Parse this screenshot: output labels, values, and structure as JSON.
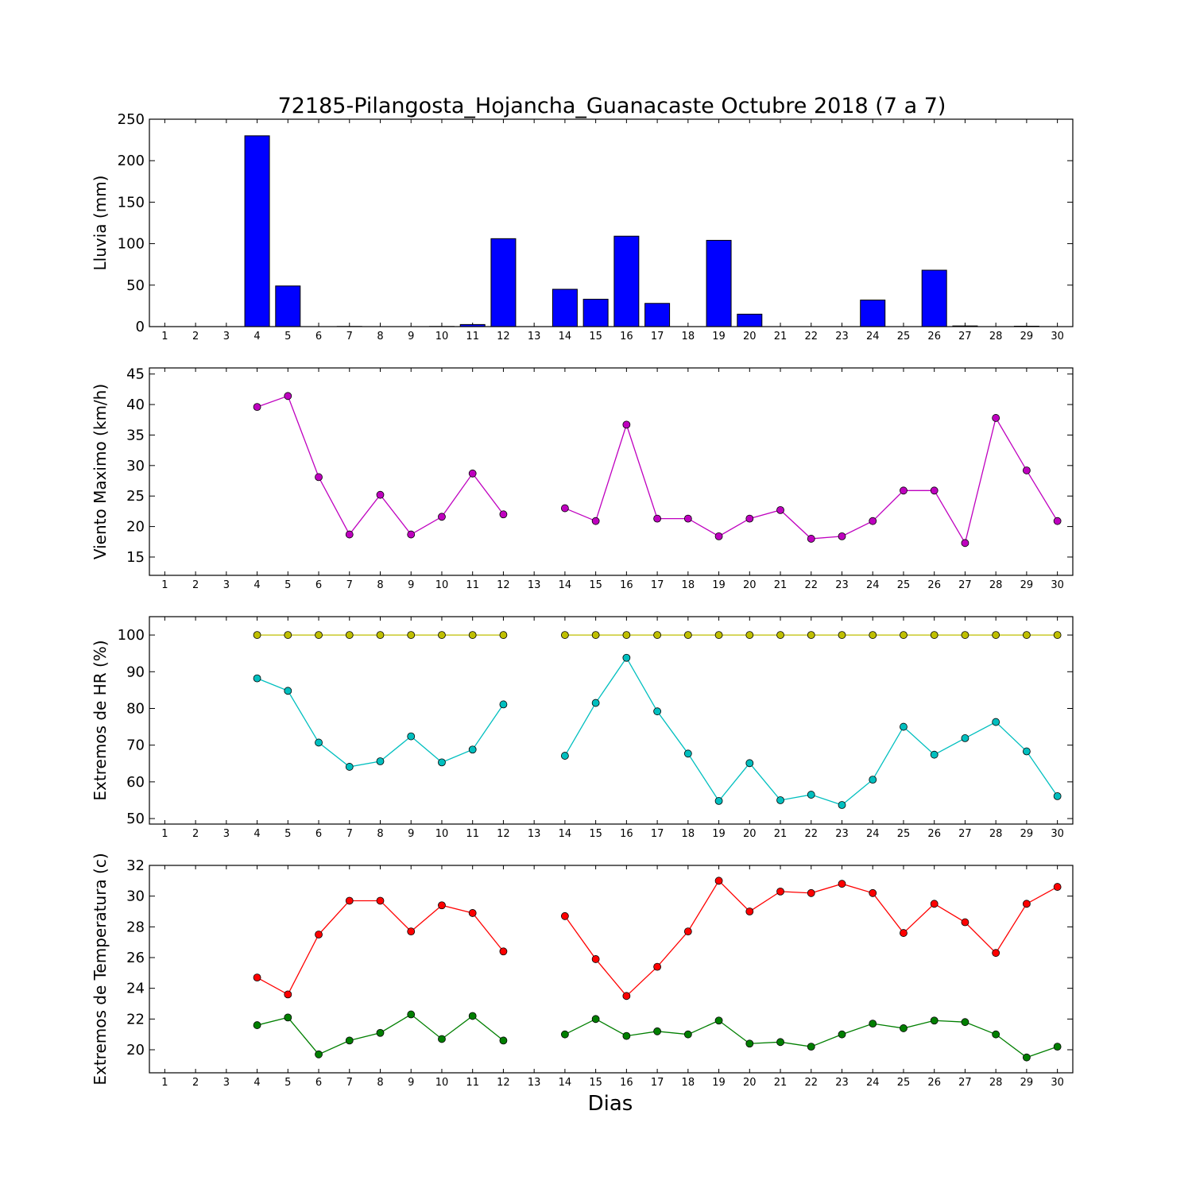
{
  "figure": {
    "title": "72185-Pilangosta_Hojancha_Guanacaste Octubre 2018  (7 a 7)",
    "xlabel": "Dias"
  },
  "chart_data": [
    {
      "type": "bar",
      "ylabel": "Lluvia (mm)",
      "ylim": [
        0,
        250
      ],
      "yticks": [
        0,
        50,
        100,
        150,
        200,
        250
      ],
      "categories": [
        "1",
        "2",
        "3",
        "4",
        "5",
        "6",
        "7",
        "8",
        "9",
        "10",
        "11",
        "12",
        "13",
        "14",
        "15",
        "16",
        "17",
        "18",
        "19",
        "20",
        "21",
        "22",
        "23",
        "24",
        "25",
        "26",
        "27",
        "28",
        "29",
        "30"
      ],
      "series": [
        {
          "color": "#0000ff",
          "values": [
            0,
            0,
            0,
            230,
            49,
            0,
            0.2,
            0,
            0,
            0.2,
            2.5,
            106,
            0,
            45,
            33,
            109,
            28,
            0,
            104,
            15,
            0,
            0,
            0,
            32,
            0,
            68,
            0.8,
            0,
            0.5,
            0
          ]
        }
      ]
    },
    {
      "type": "line",
      "ylabel": "Viento Maximo (km/h)",
      "ylim": [
        12,
        46
      ],
      "yticks": [
        15,
        20,
        25,
        30,
        35,
        40,
        45
      ],
      "categories": [
        "1",
        "2",
        "3",
        "4",
        "5",
        "6",
        "7",
        "8",
        "9",
        "10",
        "11",
        "12",
        "13",
        "14",
        "15",
        "16",
        "17",
        "18",
        "19",
        "20",
        "21",
        "22",
        "23",
        "24",
        "25",
        "26",
        "27",
        "28",
        "29",
        "30"
      ],
      "series": [
        {
          "color": "#bf00bf",
          "values": [
            null,
            null,
            null,
            39.6,
            41.4,
            28.1,
            18.7,
            25.2,
            18.7,
            21.6,
            28.7,
            22.0,
            null,
            23.0,
            20.9,
            36.7,
            21.3,
            21.3,
            18.4,
            21.3,
            22.7,
            18.0,
            18.4,
            20.9,
            25.9,
            25.9,
            17.3,
            37.8,
            29.2,
            20.9
          ]
        }
      ]
    },
    {
      "type": "line",
      "ylabel": "Extremos de HR (%)",
      "ylim": [
        48.5,
        105
      ],
      "yticks": [
        50,
        60,
        70,
        80,
        90,
        100
      ],
      "categories": [
        "1",
        "2",
        "3",
        "4",
        "5",
        "6",
        "7",
        "8",
        "9",
        "10",
        "11",
        "12",
        "13",
        "14",
        "15",
        "16",
        "17",
        "18",
        "19",
        "20",
        "21",
        "22",
        "23",
        "24",
        "25",
        "26",
        "27",
        "28",
        "29",
        "30"
      ],
      "series": [
        {
          "color": "#bfbf00",
          "values": [
            null,
            null,
            null,
            100,
            100,
            100,
            100,
            100,
            100,
            100,
            100,
            100,
            null,
            100,
            100,
            100,
            100,
            100,
            100,
            100,
            100,
            100,
            100,
            100,
            100,
            100,
            100,
            100,
            100,
            100
          ]
        },
        {
          "color": "#00bfbf",
          "values": [
            null,
            null,
            null,
            88.2,
            84.8,
            70.7,
            64.1,
            65.6,
            72.4,
            65.3,
            68.8,
            81.1,
            null,
            67.1,
            81.5,
            93.8,
            79.2,
            67.7,
            54.8,
            65.1,
            55.0,
            56.5,
            53.7,
            60.6,
            75.0,
            67.4,
            71.9,
            76.3,
            68.3,
            56.1
          ]
        }
      ]
    },
    {
      "type": "line",
      "ylabel": "Extremos de Temperatura (c)",
      "ylim": [
        18.5,
        32
      ],
      "yticks": [
        20,
        22,
        24,
        26,
        28,
        30,
        32
      ],
      "categories": [
        "1",
        "2",
        "3",
        "4",
        "5",
        "6",
        "7",
        "8",
        "9",
        "10",
        "11",
        "12",
        "13",
        "14",
        "15",
        "16",
        "17",
        "18",
        "19",
        "20",
        "21",
        "22",
        "23",
        "24",
        "25",
        "26",
        "27",
        "28",
        "29",
        "30"
      ],
      "series": [
        {
          "color": "#ff0000",
          "values": [
            null,
            null,
            null,
            24.7,
            23.6,
            27.5,
            29.7,
            29.7,
            27.7,
            29.4,
            28.9,
            26.4,
            null,
            28.7,
            25.9,
            23.5,
            25.4,
            27.7,
            31.0,
            29.0,
            30.3,
            30.2,
            30.8,
            30.2,
            27.6,
            29.5,
            28.3,
            26.3,
            29.5,
            30.6
          ]
        },
        {
          "color": "#007f00",
          "values": [
            null,
            null,
            null,
            21.6,
            22.1,
            19.7,
            20.6,
            21.1,
            22.3,
            20.7,
            22.2,
            20.6,
            null,
            21.0,
            22.0,
            20.9,
            21.2,
            21.0,
            21.9,
            20.4,
            20.5,
            20.2,
            21.0,
            21.7,
            21.4,
            21.9,
            21.8,
            21.0,
            19.5,
            20.2
          ]
        }
      ]
    }
  ]
}
